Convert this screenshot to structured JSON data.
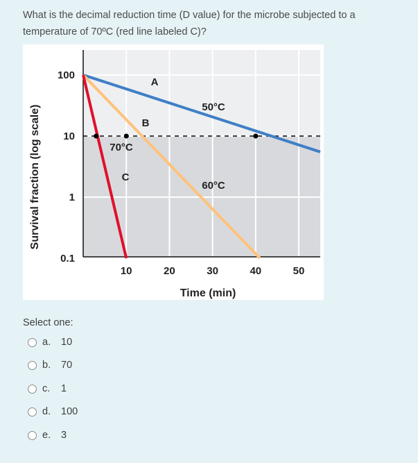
{
  "question": {
    "text": "What is the decimal reduction time (D value) for the microbe subjected to a temperature of 70ºC (red line labeled C)?"
  },
  "chart_data": {
    "type": "line",
    "xlabel": "Time (min)",
    "ylabel": "Survival fraction (log scale)",
    "x_ticks": [
      "10",
      "20",
      "30",
      "40",
      "50"
    ],
    "y_ticks": [
      "100",
      "10",
      "1",
      "0.1"
    ],
    "xlim": [
      0,
      55
    ],
    "ylim": [
      0.1,
      200
    ],
    "yscale": "log",
    "grid": true,
    "series": [
      {
        "name": "A",
        "temp_label": "50°C",
        "color": "#3f7fc6",
        "points": [
          [
            0,
            100
          ],
          [
            55,
            5.5
          ]
        ]
      },
      {
        "name": "B",
        "temp_label": "60°C",
        "color": "#ffc27a",
        "points": [
          [
            0,
            100
          ],
          [
            41,
            0.1
          ]
        ]
      },
      {
        "name": "C",
        "temp_label": "70°C",
        "color": "#e0102b",
        "points": [
          [
            0,
            100
          ],
          [
            10,
            0.1
          ]
        ]
      }
    ],
    "reference_line": {
      "y": 10,
      "style": "dashed",
      "color": "#000000"
    },
    "markers": [
      [
        3,
        10
      ],
      [
        10,
        10
      ],
      [
        40,
        10
      ]
    ]
  },
  "select": {
    "label": "Select one:"
  },
  "options": [
    {
      "letter": "a.",
      "value": "10"
    },
    {
      "letter": "b.",
      "value": "70"
    },
    {
      "letter": "c.",
      "value": "1"
    },
    {
      "letter": "d.",
      "value": "100"
    },
    {
      "letter": "e.",
      "value": "3"
    }
  ]
}
